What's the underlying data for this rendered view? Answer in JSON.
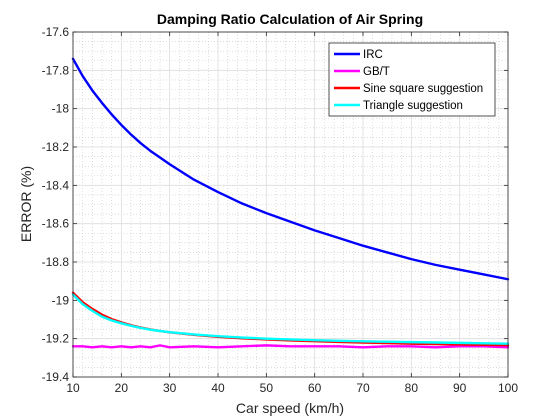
{
  "chart_data": {
    "type": "line",
    "title": "Damping Ratio Calculation of Air Spring",
    "xlabel": "Car speed (km/h)",
    "ylabel": "ERROR (%)",
    "xlim": [
      10,
      100
    ],
    "ylim": [
      -19.4,
      -17.6
    ],
    "xticks": [
      10,
      20,
      30,
      40,
      50,
      60,
      70,
      80,
      90,
      100
    ],
    "yticks": [
      -17.6,
      -17.8,
      -18,
      -18.2,
      -18.4,
      -18.6,
      -18.8,
      -19,
      -19.2,
      -19.4
    ],
    "xtick_labels": [
      "10",
      "20",
      "30",
      "40",
      "50",
      "60",
      "70",
      "80",
      "90",
      "100"
    ],
    "ytick_labels": [
      "-17.6",
      "-17.8",
      "-18",
      "-18.2",
      "-18.4",
      "-18.6",
      "-18.8",
      "-19",
      "-19.2",
      "-19.4"
    ],
    "grid": true,
    "minor_grid": true,
    "legend_position": "top-right",
    "x": [
      10,
      12,
      14,
      16,
      18,
      20,
      22,
      24,
      26,
      28,
      30,
      35,
      40,
      45,
      50,
      55,
      60,
      65,
      70,
      75,
      80,
      85,
      90,
      95,
      100
    ],
    "series": [
      {
        "name": "IRC",
        "color": "#0000ff",
        "values": [
          -17.74,
          -17.83,
          -17.905,
          -17.97,
          -18.03,
          -18.085,
          -18.135,
          -18.18,
          -18.22,
          -18.255,
          -18.29,
          -18.37,
          -18.435,
          -18.495,
          -18.545,
          -18.59,
          -18.635,
          -18.675,
          -18.715,
          -18.75,
          -18.785,
          -18.815,
          -18.84,
          -18.865,
          -18.89
        ]
      },
      {
        "name": "GB/T",
        "color": "#ff00ff",
        "values": [
          -19.24,
          -19.24,
          -19.245,
          -19.24,
          -19.245,
          -19.24,
          -19.245,
          -19.24,
          -19.245,
          -19.235,
          -19.245,
          -19.24,
          -19.245,
          -19.24,
          -19.235,
          -19.24,
          -19.24,
          -19.24,
          -19.245,
          -19.24,
          -19.24,
          -19.245,
          -19.24,
          -19.24,
          -19.245
        ]
      },
      {
        "name": "Sine square suggestion",
        "color": "#ff0000",
        "values": [
          -18.96,
          -19.01,
          -19.045,
          -19.075,
          -19.098,
          -19.115,
          -19.13,
          -19.142,
          -19.152,
          -19.16,
          -19.167,
          -19.18,
          -19.19,
          -19.198,
          -19.204,
          -19.209,
          -19.213,
          -19.217,
          -19.22,
          -19.223,
          -19.226,
          -19.228,
          -19.23,
          -19.232,
          -19.234
        ]
      },
      {
        "name": "Triangle suggestion",
        "color": "#00ffff",
        "values": [
          -18.97,
          -19.02,
          -19.055,
          -19.085,
          -19.105,
          -19.12,
          -19.133,
          -19.144,
          -19.153,
          -19.16,
          -19.166,
          -19.178,
          -19.187,
          -19.194,
          -19.2,
          -19.204,
          -19.208,
          -19.211,
          -19.214,
          -19.216,
          -19.218,
          -19.22,
          -19.222,
          -19.224,
          -19.226
        ]
      }
    ]
  }
}
